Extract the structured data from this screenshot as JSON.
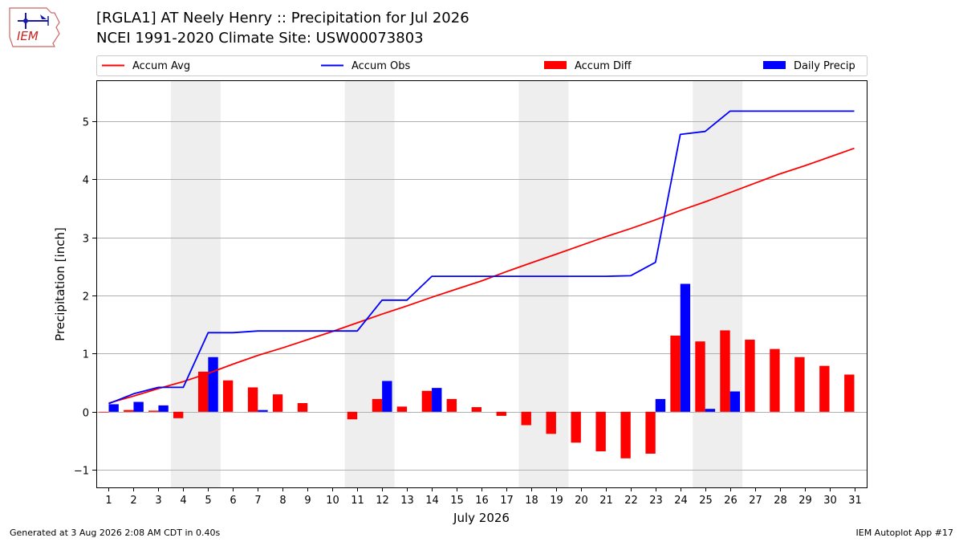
{
  "logo": {
    "text": "IEM",
    "icon": "iem-iowa-logo-icon"
  },
  "title": {
    "line1": "[RGLA1] AT Neely Henry :: Precipitation for Jul 2026",
    "line2": "NCEI 1991-2020 Climate Site: USW00073803"
  },
  "footer": {
    "left": "Generated at 3 Aug 2026 2:08 AM CDT in 0.40s",
    "right": "IEM Autoplot App #17"
  },
  "chart_data": {
    "type": "bar",
    "xlabel": "July 2026",
    "ylabel": "Precipitation [inch]",
    "ylim": [
      -1.3,
      5.7
    ],
    "yticks": [
      -1,
      0,
      1,
      2,
      3,
      4,
      5
    ],
    "ytick_labels": [
      "−1",
      "0",
      "1",
      "2",
      "3",
      "4",
      "5"
    ],
    "x": [
      1,
      2,
      3,
      4,
      5,
      6,
      7,
      8,
      9,
      10,
      11,
      12,
      13,
      14,
      15,
      16,
      17,
      18,
      19,
      20,
      21,
      22,
      23,
      24,
      25,
      26,
      27,
      28,
      29,
      30,
      31
    ],
    "weekend_shading": [
      [
        3.5,
        5.5
      ],
      [
        10.5,
        12.5
      ],
      [
        17.5,
        19.5
      ],
      [
        24.5,
        26.5
      ]
    ],
    "grid": "horizontal",
    "legend_position": "top",
    "colors": {
      "avg": "#ff0000",
      "obs": "#0000ff",
      "diff": "#ff0000",
      "daily": "#0000ff",
      "shade": "#eeeeee"
    },
    "series": [
      {
        "name": "Accum Avg",
        "type": "line",
        "color": "#ff0000",
        "values": [
          0.15,
          0.27,
          0.4,
          0.52,
          0.66,
          0.82,
          0.97,
          1.1,
          1.24,
          1.38,
          1.53,
          1.68,
          1.82,
          1.97,
          2.11,
          2.25,
          2.41,
          2.56,
          2.71,
          2.86,
          3.01,
          3.15,
          3.3,
          3.46,
          3.61,
          3.77,
          3.93,
          4.09,
          4.23,
          4.38,
          4.53
        ]
      },
      {
        "name": "Accum Obs",
        "type": "line",
        "color": "#0000ff",
        "values": [
          0.14,
          0.31,
          0.42,
          0.42,
          1.36,
          1.36,
          1.39,
          1.39,
          1.39,
          1.39,
          1.39,
          1.92,
          1.92,
          2.33,
          2.33,
          2.33,
          2.33,
          2.33,
          2.33,
          2.33,
          2.33,
          2.34,
          2.57,
          4.77,
          4.82,
          5.17,
          5.17,
          5.17,
          5.17,
          5.17,
          5.17
        ]
      },
      {
        "name": "Accum Diff",
        "type": "bar",
        "color": "#ff0000",
        "values": [
          -0.01,
          0.03,
          0.02,
          -0.11,
          0.69,
          0.54,
          0.42,
          0.3,
          0.15,
          0.0,
          -0.13,
          0.22,
          0.09,
          0.36,
          0.22,
          0.08,
          -0.07,
          -0.23,
          -0.38,
          -0.53,
          -0.68,
          -0.8,
          -0.72,
          1.31,
          1.21,
          1.4,
          1.24,
          1.08,
          0.94,
          0.79,
          0.64
        ]
      },
      {
        "name": "Daily Precip",
        "type": "bar",
        "color": "#0000ff",
        "values": [
          0.13,
          0.17,
          0.11,
          0.0,
          0.94,
          0.0,
          0.03,
          0.0,
          0.0,
          0.0,
          0.0,
          0.53,
          0.0,
          0.41,
          0.0,
          0.0,
          0.0,
          0.0,
          0.0,
          0.0,
          0.0,
          0.0,
          0.22,
          2.2,
          0.05,
          0.35,
          0.0,
          0.0,
          0.0,
          0.0,
          0.0
        ]
      }
    ]
  }
}
